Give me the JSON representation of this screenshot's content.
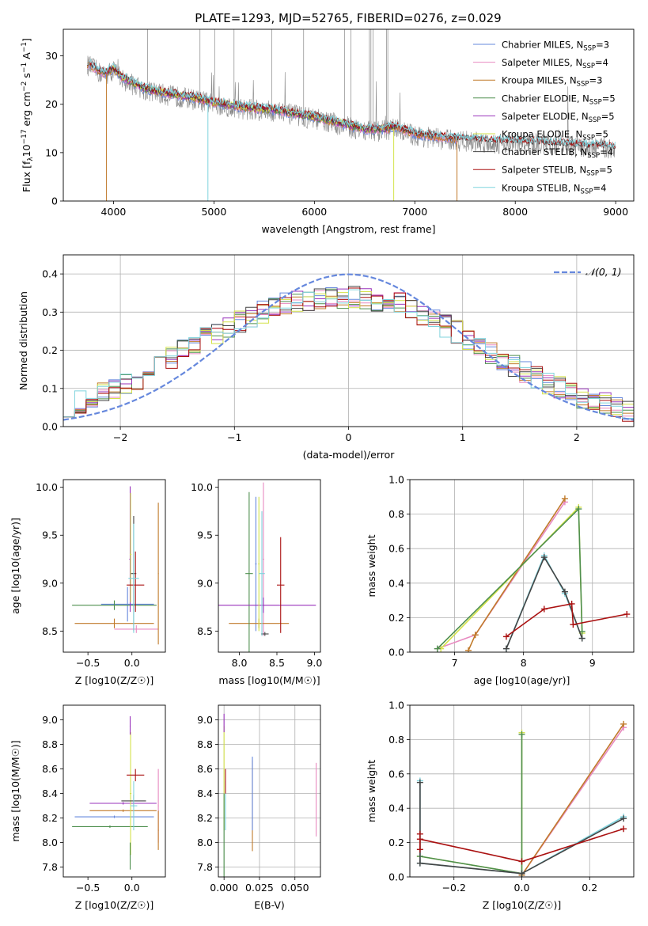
{
  "figure": {
    "title": "PLATE=1293, MJD=52765, FIBERID=0276, z=0.029"
  },
  "series_colors": {
    "chabrier_miles": "#6688dd",
    "salpeter_miles": "#e88ac0",
    "kroupa_miles": "#c07a2a",
    "chabrier_elodie": "#4e8f4e",
    "salpeter_elodie": "#9933bb",
    "kroupa_elodie": "#d4e24a",
    "chabrier_stelib": "#444444",
    "salpeter_stelib": "#aa1111",
    "kroupa_stelib": "#7fd3dd",
    "data": "#888888",
    "normal": "#6688dd"
  },
  "chart_data": [
    {
      "type": "line",
      "panel": "spectrum",
      "xlabel": "wavelength [Angstrom, rest frame]",
      "ylabel": "Flux [f_λ10^-17 erg cm^-2 s^-1 A^-1]",
      "xlim": [
        3500,
        9180
      ],
      "ylim": [
        0,
        35.5
      ],
      "xticks": [
        "4000",
        "5000",
        "6000",
        "7000",
        "8000",
        "9000"
      ],
      "yticks": [
        "0",
        "10",
        "20",
        "30"
      ],
      "grid": false,
      "legend_position": "top-right",
      "legend": [
        {
          "key": "chabrier_miles",
          "label": "Chabrier MILES, N",
          "sub": "SSP",
          "suffix": "=3"
        },
        {
          "key": "salpeter_miles",
          "label": "Salpeter MILES, N",
          "sub": "SSP",
          "suffix": "=4"
        },
        {
          "key": "kroupa_miles",
          "label": "Kroupa MILES, N",
          "sub": "SSP",
          "suffix": "=3"
        },
        {
          "key": "chabrier_elodie",
          "label": "Chabrier ELODIE, N",
          "sub": "SSP",
          "suffix": "=5"
        },
        {
          "key": "salpeter_elodie",
          "label": "Salpeter ELODIE, N",
          "sub": "SSP",
          "suffix": "=5"
        },
        {
          "key": "kroupa_elodie",
          "label": "Kroupa ELODIE, N",
          "sub": "SSP",
          "suffix": "=5"
        },
        {
          "key": "chabrier_stelib",
          "label": "Chabrier STELIB, N",
          "sub": "SSP",
          "suffix": "=4"
        },
        {
          "key": "salpeter_stelib",
          "label": "Salpeter STELIB, N",
          "sub": "SSP",
          "suffix": "=5"
        },
        {
          "key": "kroupa_stelib",
          "label": "Kroupa STELIB, N",
          "sub": "SSP",
          "suffix": "=4"
        }
      ],
      "continuum": {
        "x": [
          3750,
          3900,
          4000,
          4100,
          4300,
          4500,
          4800,
          5000,
          5300,
          5600,
          6000,
          6300,
          6500,
          6700,
          6800,
          7000,
          7400,
          7800,
          8200,
          8600,
          9000
        ],
        "y": [
          28,
          26,
          27,
          25,
          23,
          22,
          21,
          20,
          19,
          18.5,
          17,
          15.5,
          14.5,
          14.5,
          15,
          13.5,
          12.5,
          12,
          11.8,
          11.2,
          10.8
        ]
      },
      "model_coverage": {
        "miles": [
          3740,
          7420
        ],
        "elodie": [
          3900,
          6800
        ],
        "stelib": [
          3740,
          9000
        ]
      }
    },
    {
      "type": "line",
      "panel": "residuals",
      "xlabel": "(data-model)/error",
      "ylabel": "Normed distribution",
      "xlim": [
        -2.5,
        2.5
      ],
      "ylim": [
        0,
        0.45
      ],
      "xticks": [
        "−2",
        "−1",
        "0",
        "1",
        "2"
      ],
      "yticks": [
        "0.0",
        "0.1",
        "0.2",
        "0.3",
        "0.4"
      ],
      "grid": true,
      "legend_position": "top-right",
      "legend_label": "𝒩(0, 1)",
      "bins": 50,
      "histogram_profile": {
        "x": [
          -2.5,
          -2.0,
          -1.5,
          -1.0,
          -0.5,
          0.0,
          0.5,
          1.0,
          1.5,
          2.0,
          2.5
        ],
        "y": [
          0.05,
          0.1,
          0.19,
          0.27,
          0.33,
          0.34,
          0.32,
          0.24,
          0.15,
          0.08,
          0.04
        ]
      }
    },
    {
      "type": "scatter",
      "panel": "Z-age",
      "xlabel": "Z [log10(Z/Z☉)]",
      "ylabel": "age  [log10(age/yr)]",
      "xlim": [
        -0.78,
        0.38
      ],
      "ylim": [
        8.28,
        10.08
      ],
      "xticks": [
        "−0.5",
        "0.0"
      ],
      "yticks": [
        "8.5",
        "9.0",
        "9.5",
        "10.0"
      ],
      "points": [
        {
          "s": "chabrier_miles",
          "x": -0.05,
          "xerr": 0.3,
          "y": 8.78,
          "yerr": [
            0.18,
            0.18
          ]
        },
        {
          "s": "salpeter_miles",
          "x": 0.05,
          "xerr": 0.25,
          "y": 8.52,
          "yerr": [
            0.04,
            0.04
          ]
        },
        {
          "s": "kroupa_miles",
          "x": -0.2,
          "xerr": 0.45,
          "y": 8.58,
          "yerr": [
            0.05,
            0.05
          ]
        },
        {
          "s": "chabrier_elodie",
          "x": -0.2,
          "xerr": 0.48,
          "y": 8.77,
          "yerr": [
            0.05,
            0.05
          ]
        },
        {
          "s": "salpeter_elodie",
          "x": -0.02,
          "xerr": 0.01,
          "y": 9.25,
          "yerr": [
            0.55,
            0.76
          ]
        },
        {
          "s": "kroupa_elodie",
          "x": -0.015,
          "xerr": 0.01,
          "y": 9.3,
          "yerr": [
            0.5,
            0.64
          ]
        },
        {
          "s": "chabrier_stelib",
          "x": 0.02,
          "xerr": 0.03,
          "y": 9.1,
          "yerr": [
            0.6,
            0.6
          ]
        },
        {
          "s": "salpeter_stelib",
          "x": 0.04,
          "xerr": 0.1,
          "y": 8.98,
          "yerr": [
            0.28,
            0.35
          ]
        },
        {
          "s": "kroupa_stelib",
          "x": 0.02,
          "xerr": 0.06,
          "y": 9.05,
          "yerr": [
            0.57,
            0.57
          ]
        },
        {
          "s": "kroupa_miles",
          "x": 0.3,
          "xerr": 0.005,
          "y": 9.1,
          "yerr": [
            0.74,
            0.74
          ]
        }
      ]
    },
    {
      "type": "scatter",
      "panel": "mass-age",
      "xlabel": "mass [log10(M/M☉)]",
      "ylabel": "",
      "xlim": [
        7.72,
        9.08
      ],
      "ylim": [
        8.28,
        10.08
      ],
      "xticks": [
        "8.0",
        "8.5",
        "9.0"
      ],
      "yticks": [
        "8.5",
        "9.0",
        "9.5",
        "10.0"
      ],
      "points": [
        {
          "s": "chabrier_miles",
          "x": 8.22,
          "xerr": 0.01,
          "y": 9.2,
          "yerr": [
            0.7,
            0.7
          ]
        },
        {
          "s": "salpeter_miles",
          "x": 8.32,
          "xerr": 0.01,
          "y": 9.25,
          "yerr": [
            0.8,
            0.8
          ]
        },
        {
          "s": "kroupa_miles",
          "x": 8.26,
          "xerr": 0.4,
          "y": 8.58,
          "yerr": [
            0.05,
            0.05
          ]
        },
        {
          "s": "chabrier_elodie",
          "x": 8.13,
          "xerr": 0.05,
          "y": 9.1,
          "yerr": [
            0.85,
            0.85
          ]
        },
        {
          "s": "salpeter_elodie",
          "x": 8.32,
          "xerr": 0.7,
          "y": 8.77,
          "yerr": [
            0.08,
            0.08
          ]
        },
        {
          "s": "kroupa_elodie",
          "x": 8.26,
          "xerr": 0.01,
          "y": 9.2,
          "yerr": [
            0.7,
            0.7
          ]
        },
        {
          "s": "chabrier_stelib",
          "x": 8.34,
          "xerr": 0.05,
          "y": 8.47,
          "yerr": [
            0.02,
            0.02
          ]
        },
        {
          "s": "salpeter_stelib",
          "x": 8.55,
          "xerr": 0.05,
          "y": 8.98,
          "yerr": [
            0.5,
            0.5
          ]
        },
        {
          "s": "kroupa_stelib",
          "x": 8.3,
          "xerr": 0.04,
          "y": 9.1,
          "yerr": [
            0.65,
            0.65
          ]
        }
      ]
    },
    {
      "type": "line",
      "panel": "age-weight",
      "xlabel": "age  [log10(age/yr)]",
      "ylabel": "mass weight",
      "xlim": [
        6.35,
        9.6
      ],
      "ylim": [
        0,
        1.0
      ],
      "xticks": [
        "7",
        "8",
        "9"
      ],
      "yticks": [
        "0.0",
        "0.2",
        "0.4",
        "0.6",
        "0.8",
        "1.0"
      ],
      "grid": true,
      "series": [
        {
          "s": "salpeter_miles",
          "x": [
            6.75,
            7.3,
            8.6
          ],
          "y": [
            0.02,
            0.1,
            0.87
          ]
        },
        {
          "s": "kroupa_miles",
          "x": [
            7.2,
            7.3,
            8.6
          ],
          "y": [
            0.01,
            0.1,
            0.89
          ]
        },
        {
          "s": "kroupa_elodie",
          "x": [
            6.8,
            8.8,
            8.85
          ],
          "y": [
            0.02,
            0.84,
            0.11
          ]
        },
        {
          "s": "chabrier_elodie",
          "x": [
            6.75,
            8.8,
            8.85
          ],
          "y": [
            0.02,
            0.83,
            0.12
          ]
        },
        {
          "s": "kroupa_stelib",
          "x": [
            7.75,
            8.3,
            8.6,
            8.85
          ],
          "y": [
            0.02,
            0.56,
            0.34,
            0.08
          ]
        },
        {
          "s": "chabrier_stelib",
          "x": [
            7.75,
            8.3,
            8.6,
            8.85
          ],
          "y": [
            0.02,
            0.55,
            0.35,
            0.08
          ]
        },
        {
          "s": "salpeter_stelib",
          "x": [
            7.75,
            8.3,
            8.7,
            8.72,
            9.5
          ],
          "y": [
            0.09,
            0.25,
            0.28,
            0.16,
            0.22
          ]
        }
      ]
    },
    {
      "type": "scatter",
      "panel": "Z-mass",
      "xlabel": "Z [log10(Z/Z☉)]",
      "ylabel": "mass [log10(M/M☉)]",
      "xlim": [
        -0.78,
        0.38
      ],
      "ylim": [
        7.72,
        9.12
      ],
      "xticks": [
        "−0.5",
        "0.0"
      ],
      "yticks": [
        "7.8",
        "8.0",
        "8.2",
        "8.4",
        "8.6",
        "8.8",
        "9.0"
      ],
      "points": [
        {
          "s": "chabrier_miles",
          "x": -0.2,
          "xerr": 0.45,
          "y": 8.21,
          "yerr": [
            0.01,
            0.01
          ]
        },
        {
          "s": "salpeter_miles",
          "x": 0.3,
          "xerr": 0.005,
          "y": 8.3,
          "yerr": [
            0.3,
            0.3
          ]
        },
        {
          "s": "kroupa_miles",
          "x": -0.1,
          "xerr": 0.38,
          "y": 8.26,
          "yerr": [
            0.01,
            0.01
          ]
        },
        {
          "s": "chabrier_elodie",
          "x": -0.25,
          "xerr": 0.43,
          "y": 8.13,
          "yerr": [
            0.01,
            0.01
          ]
        },
        {
          "s": "salpeter_elodie",
          "x": -0.1,
          "xerr": 0.38,
          "y": 8.32,
          "yerr": [
            0.01,
            0.01
          ]
        },
        {
          "s": "kroupa_elodie",
          "x": -0.015,
          "xerr": 0.01,
          "y": 8.4,
          "yerr": [
            0.5,
            0.5
          ]
        },
        {
          "s": "chabrier_stelib",
          "x": 0.02,
          "xerr": 0.14,
          "y": 8.34,
          "yerr": [
            0.05,
            0.05
          ]
        },
        {
          "s": "salpeter_stelib",
          "x": 0.04,
          "xerr": 0.1,
          "y": 8.55,
          "yerr": [
            0.05,
            0.05
          ]
        },
        {
          "s": "kroupa_stelib",
          "x": 0.02,
          "xerr": 0.04,
          "y": 8.3,
          "yerr": [
            0.2,
            0.2
          ]
        },
        {
          "s": "salpeter_elodie",
          "x": -0.02,
          "xerr": 0.005,
          "y": 8.95,
          "yerr": [
            0.07,
            0.08
          ]
        },
        {
          "s": "chabrier_elodie",
          "x": -0.02,
          "xerr": 0.005,
          "y": 7.9,
          "yerr": [
            0.12,
            0.1
          ]
        },
        {
          "s": "kroupa_miles",
          "x": 0.3,
          "xerr": 0.005,
          "y": 8.1,
          "yerr": [
            0.16,
            0.16
          ]
        }
      ]
    },
    {
      "type": "scatter",
      "panel": "EBV-mass",
      "xlabel": "E(B-V)",
      "ylabel": "",
      "xlim": [
        -0.004,
        0.068
      ],
      "ylim": [
        7.72,
        9.12
      ],
      "xticks": [
        "0.000",
        "0.025",
        "0.050"
      ],
      "yticks": [
        "7.8",
        "8.0",
        "8.2",
        "8.4",
        "8.6",
        "8.8",
        "9.0"
      ],
      "grid": true,
      "points": [
        {
          "s": "kroupa_elodie",
          "x": 0.0,
          "y": 8.5,
          "yerr": [
            0.4,
            0.45
          ]
        },
        {
          "s": "salpeter_elodie",
          "x": 0.0,
          "y": 8.95,
          "yerr": [
            0.05,
            0.1
          ]
        },
        {
          "s": "chabrier_elodie",
          "x": 0.0,
          "y": 8.0,
          "yerr": [
            0.3,
            0.4
          ]
        },
        {
          "s": "kroupa_stelib",
          "x": 0.001,
          "y": 8.3,
          "yerr": [
            0.2,
            0.2
          ]
        },
        {
          "s": "salpeter_stelib",
          "x": 0.001,
          "y": 8.5,
          "yerr": [
            0.1,
            0.1
          ]
        },
        {
          "s": "kroupa_miles",
          "x": 0.02,
          "y": 8.3,
          "yerr": [
            0.37,
            0.37
          ]
        },
        {
          "s": "chabrier_miles",
          "x": 0.02,
          "y": 8.4,
          "yerr": [
            0.3,
            0.3
          ]
        },
        {
          "s": "salpeter_miles",
          "x": 0.065,
          "y": 8.35,
          "yerr": [
            0.3,
            0.3
          ]
        }
      ]
    },
    {
      "type": "line",
      "panel": "Z-weight",
      "xlabel": "Z [log10(Z/Z☉)]",
      "ylabel": "mass weight",
      "xlim": [
        -0.33,
        0.33
      ],
      "ylim": [
        0,
        1.0
      ],
      "xticks": [
        "−0.2",
        "0.0",
        "0.2"
      ],
      "yticks": [
        "0.0",
        "0.2",
        "0.4",
        "0.6",
        "0.8",
        "1.0"
      ],
      "grid": true,
      "series": [
        {
          "s": "salpeter_miles",
          "x": [
            0.0,
            0.3
          ],
          "y": [
            0.01,
            0.87
          ]
        },
        {
          "s": "kroupa_miles",
          "x": [
            0.0,
            0.3
          ],
          "y": [
            0.01,
            0.89
          ]
        },
        {
          "s": "kroupa_elodie",
          "x": [
            -0.3,
            0.0,
            0.0
          ],
          "y": [
            0.12,
            0.02,
            0.84
          ]
        },
        {
          "s": "chabrier_elodie",
          "x": [
            -0.3,
            0.0,
            0.0
          ],
          "y": [
            0.12,
            0.02,
            0.83
          ]
        },
        {
          "s": "kroupa_stelib",
          "x": [
            -0.3,
            -0.3,
            0.0,
            0.3
          ],
          "y": [
            0.56,
            0.08,
            0.02,
            0.35
          ]
        },
        {
          "s": "chabrier_stelib",
          "x": [
            -0.3,
            -0.3,
            0.0,
            0.3
          ],
          "y": [
            0.55,
            0.08,
            0.02,
            0.34
          ]
        },
        {
          "s": "salpeter_stelib",
          "x": [
            -0.3,
            -0.3,
            0.0,
            0.3
          ],
          "y": [
            0.16,
            0.22,
            0.09,
            0.28
          ]
        },
        {
          "s": "salpeter_stelib",
          "x": [
            -0.3
          ],
          "y": [
            0.25
          ]
        }
      ]
    }
  ]
}
